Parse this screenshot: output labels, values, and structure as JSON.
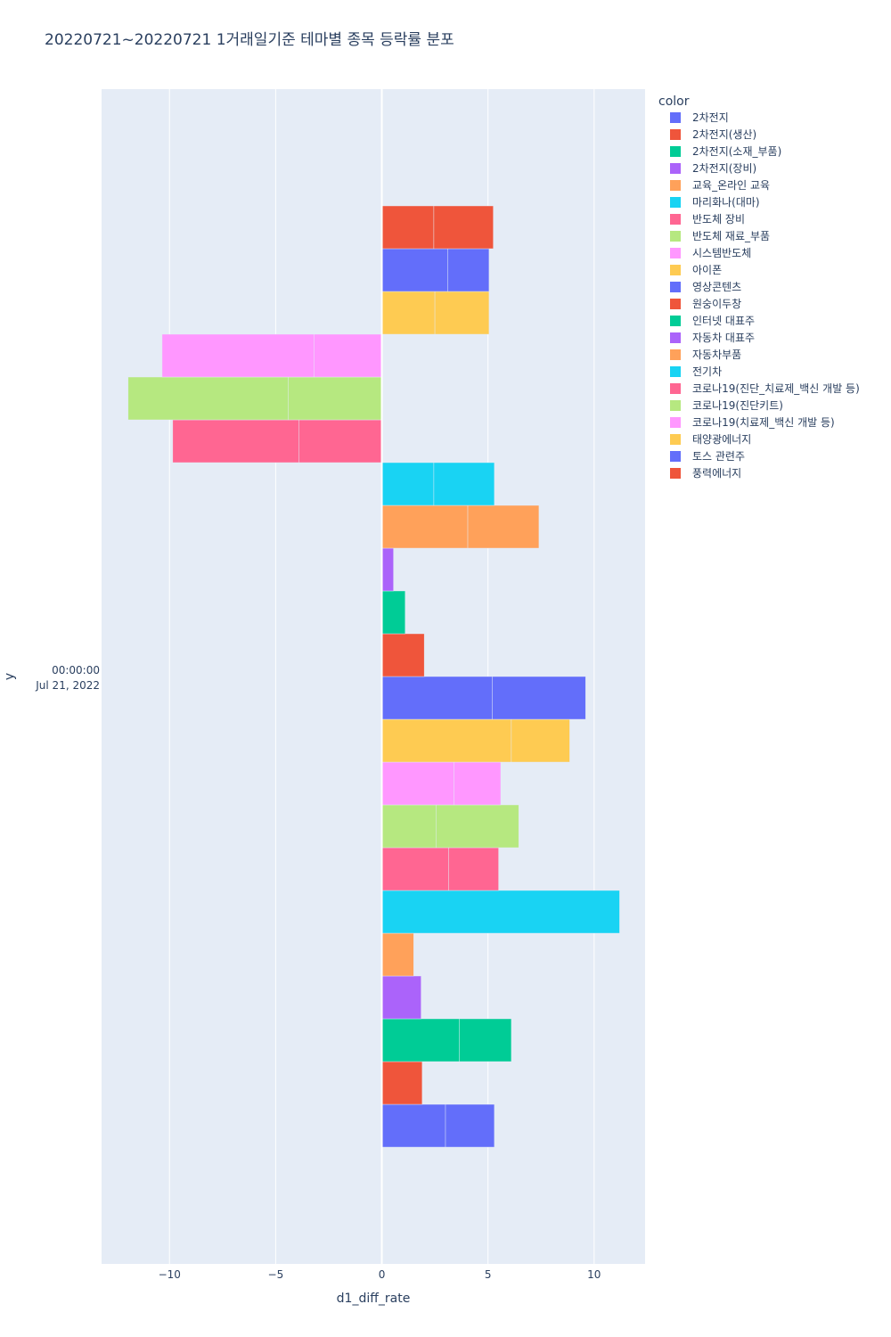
{
  "chart_data": {
    "type": "bar",
    "orientation": "horizontal",
    "barmode": "relative",
    "title": "20220721~20220721 1거래일기준 테마별 종목 등락률 분포",
    "xlabel": "d1_diff_rate",
    "ylabel": "y",
    "xlim": [
      -13.2,
      12.4
    ],
    "x_ticks": [
      -10,
      -5,
      0,
      5,
      10
    ],
    "x_tick_labels": [
      "−10",
      "−5",
      "0",
      "5",
      "10"
    ],
    "y_tick_label_line1": "00:00:00",
    "y_tick_label_line2": "Jul 21, 2022",
    "legend_title": "color",
    "legend_position": "top-right",
    "series": [
      {
        "name": "2차전지",
        "color": "#636efa",
        "values": [
          3.0,
          2.3
        ]
      },
      {
        "name": "2차전지(생산)",
        "color": "#EF553B",
        "values": [
          1.9
        ]
      },
      {
        "name": "2차전지(소재_부품)",
        "color": "#00cc96",
        "values": [
          3.65,
          2.45
        ]
      },
      {
        "name": "2차전지(장비)",
        "color": "#ab63fa",
        "values": [
          1.85
        ]
      },
      {
        "name": "교육_온라인 교육",
        "color": "#FFA15A",
        "values": [
          1.5
        ]
      },
      {
        "name": "마리화나(대마)",
        "color": "#19d3f3",
        "values": [
          11.2
        ]
      },
      {
        "name": "반도체 장비",
        "color": "#FF6692",
        "values": [
          3.15,
          2.35
        ]
      },
      {
        "name": "반도체 재료_부품",
        "color": "#B6E880",
        "values": [
          2.55,
          3.9
        ]
      },
      {
        "name": "시스템반도체",
        "color": "#FF97FF",
        "values": [
          3.4,
          2.2
        ]
      },
      {
        "name": "아이폰",
        "color": "#FECB52",
        "values": [
          6.1,
          2.75
        ]
      },
      {
        "name": "영상콘텐츠",
        "color": "#636efa",
        "values": [
          5.2,
          4.4
        ]
      },
      {
        "name": "원숭이두창",
        "color": "#EF553B",
        "values": [
          2.0
        ]
      },
      {
        "name": "인터넷 대표주",
        "color": "#00cc96",
        "values": [
          1.1
        ]
      },
      {
        "name": "자동차 대표주",
        "color": "#ab63fa",
        "values": [
          0.55
        ]
      },
      {
        "name": "자동차부품",
        "color": "#FFA15A",
        "values": [
          4.05,
          3.35
        ]
      },
      {
        "name": "전기차",
        "color": "#19d3f3",
        "values": [
          2.45,
          2.85
        ]
      },
      {
        "name": "코로나19(진단_치료제_백신 개발 등)",
        "color": "#FF6692",
        "values": [
          -3.9,
          -5.95
        ]
      },
      {
        "name": "코로나19(진단키트)",
        "color": "#B6E880",
        "values": [
          -4.4,
          -7.55
        ]
      },
      {
        "name": "코로나19(치료제_백신 개발 등)",
        "color": "#FF97FF",
        "values": [
          -3.2,
          -7.15
        ]
      },
      {
        "name": "태양광에너지",
        "color": "#FECB52",
        "values": [
          2.5,
          2.55
        ]
      },
      {
        "name": "토스 관련주",
        "color": "#636efa",
        "values": [
          3.1,
          1.95
        ]
      },
      {
        "name": "풍력에너지",
        "color": "#EF553B",
        "values": [
          2.45,
          2.8
        ]
      }
    ]
  }
}
